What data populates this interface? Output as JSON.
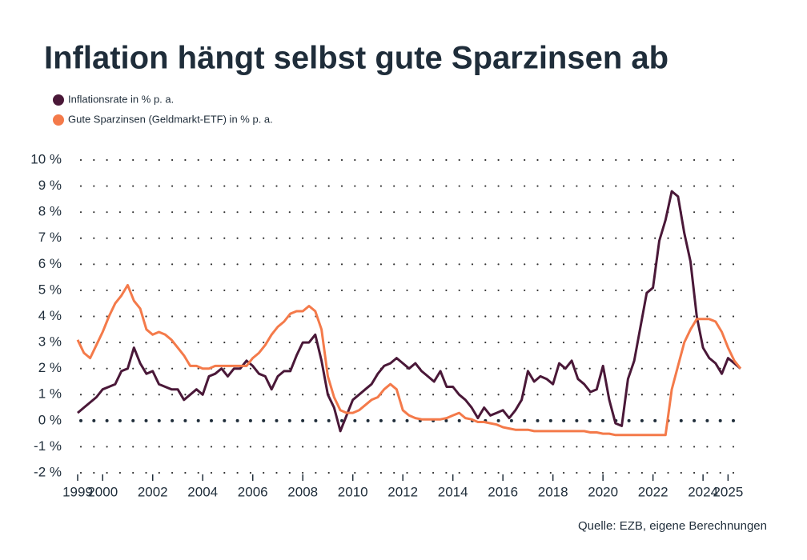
{
  "chart_data": {
    "type": "line",
    "title": "Inflation hängt selbst gute Sparzinsen ab",
    "source": "Quelle: EZB, eigene Berechnungen",
    "grid": true,
    "legend": "top-left",
    "xlim": [
      1999,
      2025.5
    ],
    "ylim": [
      -2,
      10
    ],
    "yticks": [
      {
        "value": -2,
        "label": "-2 %"
      },
      {
        "value": -1,
        "label": "-1 %"
      },
      {
        "value": 0,
        "label": "0 %"
      },
      {
        "value": 1,
        "label": "1 %"
      },
      {
        "value": 2,
        "label": "2 %"
      },
      {
        "value": 3,
        "label": "3 %"
      },
      {
        "value": 4,
        "label": "4 %"
      },
      {
        "value": 5,
        "label": "5 %"
      },
      {
        "value": 6,
        "label": "6 %"
      },
      {
        "value": 7,
        "label": "7 %"
      },
      {
        "value": 8,
        "label": "8 %"
      },
      {
        "value": 9,
        "label": "9 %"
      },
      {
        "value": 10,
        "label": "10 %"
      }
    ],
    "xticks": [
      1999,
      2000,
      2002,
      2004,
      2006,
      2008,
      2010,
      2012,
      2014,
      2016,
      2018,
      2020,
      2022,
      2024,
      2025
    ],
    "x": [
      1999,
      1999.25,
      1999.5,
      1999.75,
      2000,
      2000.25,
      2000.5,
      2000.75,
      2001,
      2001.25,
      2001.5,
      2001.75,
      2002,
      2002.25,
      2002.5,
      2002.75,
      2003,
      2003.25,
      2003.5,
      2003.75,
      2004,
      2004.25,
      2004.5,
      2004.75,
      2005,
      2005.25,
      2005.5,
      2005.75,
      2006,
      2006.25,
      2006.5,
      2006.75,
      2007,
      2007.25,
      2007.5,
      2007.75,
      2008,
      2008.25,
      2008.5,
      2008.75,
      2009,
      2009.25,
      2009.5,
      2009.75,
      2010,
      2010.25,
      2010.5,
      2010.75,
      2011,
      2011.25,
      2011.5,
      2011.75,
      2012,
      2012.25,
      2012.5,
      2012.75,
      2013,
      2013.25,
      2013.5,
      2013.75,
      2014,
      2014.25,
      2014.5,
      2014.75,
      2015,
      2015.25,
      2015.5,
      2015.75,
      2016,
      2016.25,
      2016.5,
      2016.75,
      2017,
      2017.25,
      2017.5,
      2017.75,
      2018,
      2018.25,
      2018.5,
      2018.75,
      2019,
      2019.25,
      2019.5,
      2019.75,
      2020,
      2020.25,
      2020.5,
      2020.75,
      2021,
      2021.25,
      2021.5,
      2021.75,
      2022,
      2022.25,
      2022.5,
      2022.75,
      2023,
      2023.25,
      2023.5,
      2023.75,
      2024,
      2024.25,
      2024.5,
      2024.75,
      2025,
      2025.25,
      2025.5
    ],
    "series": [
      {
        "name": "Inflationsrate in % p. a.",
        "color": "#4a1838",
        "values": [
          0.3,
          0.5,
          0.7,
          0.9,
          1.2,
          1.3,
          1.4,
          1.9,
          2.0,
          2.8,
          2.2,
          1.8,
          1.9,
          1.4,
          1.3,
          1.2,
          1.2,
          0.8,
          1.0,
          1.2,
          1.0,
          1.7,
          1.8,
          2.0,
          1.7,
          2.0,
          2.0,
          2.3,
          2.1,
          1.8,
          1.7,
          1.2,
          1.7,
          1.9,
          1.9,
          2.5,
          3.0,
          3.0,
          3.3,
          2.3,
          1.0,
          0.5,
          -0.4,
          0.2,
          0.8,
          1.0,
          1.2,
          1.4,
          1.8,
          2.1,
          2.2,
          2.4,
          2.2,
          2.0,
          2.2,
          1.9,
          1.7,
          1.5,
          1.9,
          1.3,
          1.3,
          1.0,
          0.8,
          0.5,
          0.1,
          0.5,
          0.2,
          0.3,
          0.4,
          0.1,
          0.4,
          0.8,
          1.9,
          1.5,
          1.7,
          1.6,
          1.4,
          2.2,
          2.0,
          2.3,
          1.6,
          1.4,
          1.1,
          1.2,
          2.1,
          0.8,
          -0.1,
          -0.2,
          1.6,
          2.3,
          3.6,
          4.9,
          5.1,
          6.9,
          7.7,
          8.8,
          8.6,
          7.2,
          6.1,
          4.0,
          2.8,
          2.4,
          2.2,
          1.8,
          2.4,
          2.2,
          2.0
        ]
      },
      {
        "name": "Gute Sparzinsen (Geldmarkt-ETF) in % p. a.",
        "color": "#f47a4a",
        "values": [
          3.1,
          2.6,
          2.4,
          2.9,
          3.4,
          4.0,
          4.5,
          4.8,
          5.2,
          4.6,
          4.3,
          3.5,
          3.3,
          3.4,
          3.3,
          3.1,
          2.8,
          2.5,
          2.1,
          2.1,
          2.0,
          2.0,
          2.1,
          2.1,
          2.1,
          2.1,
          2.1,
          2.1,
          2.4,
          2.6,
          2.9,
          3.3,
          3.6,
          3.8,
          4.1,
          4.2,
          4.2,
          4.4,
          4.2,
          3.5,
          1.7,
          0.9,
          0.4,
          0.3,
          0.3,
          0.4,
          0.6,
          0.8,
          0.9,
          1.2,
          1.4,
          1.2,
          0.4,
          0.2,
          0.1,
          0.05,
          0.05,
          0.05,
          0.05,
          0.1,
          0.2,
          0.3,
          0.1,
          0.05,
          -0.05,
          -0.05,
          -0.1,
          -0.15,
          -0.25,
          -0.3,
          -0.35,
          -0.35,
          -0.35,
          -0.4,
          -0.4,
          -0.4,
          -0.4,
          -0.4,
          -0.4,
          -0.4,
          -0.4,
          -0.4,
          -0.45,
          -0.45,
          -0.5,
          -0.5,
          -0.55,
          -0.55,
          -0.55,
          -0.55,
          -0.55,
          -0.55,
          -0.55,
          -0.55,
          -0.55,
          1.2,
          2.1,
          3.0,
          3.5,
          3.9,
          3.9,
          3.9,
          3.8,
          3.4,
          2.8,
          2.3,
          2.0
        ]
      }
    ]
  }
}
